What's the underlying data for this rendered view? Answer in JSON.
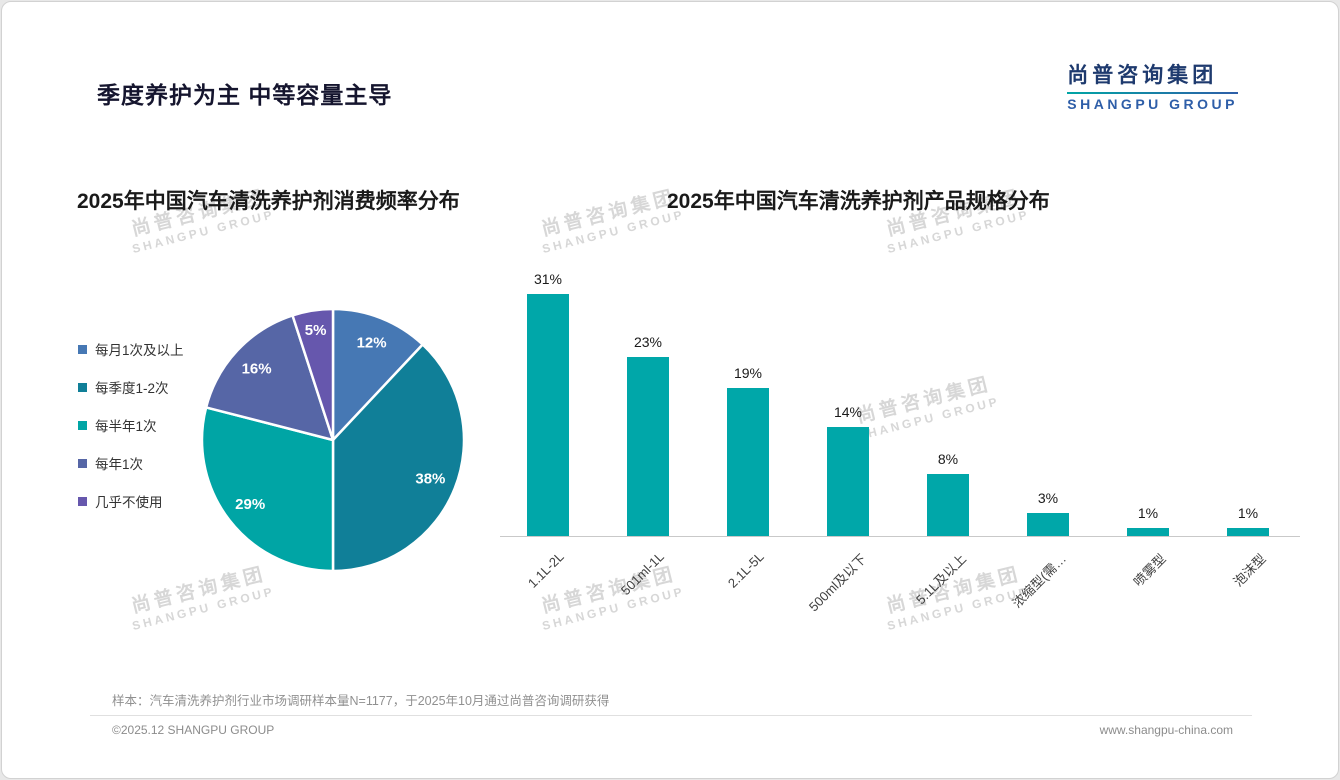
{
  "slide": {
    "title": "季度养护为主 中等容量主导",
    "logo": {
      "cn": "尚普咨询集团",
      "en": "SHANGPU GROUP"
    },
    "watermark": {
      "cn": "尚普咨询集团",
      "en": "SHANGPU GROUP"
    },
    "footer": {
      "note": "样本：汽车清洗养护剂行业市场调研样本量N=1177，于2025年10月通过尚普咨询调研获得",
      "copyright": "©2025.12 SHANGPU GROUP",
      "website": "www.shangpu-china.com"
    }
  },
  "chart_data": [
    {
      "type": "pie",
      "title": "2025年中国汽车清洗养护剂消费频率分布",
      "legend_position": "left",
      "start_angle_deg": -90,
      "direction": "clockwise",
      "slices": [
        {
          "label": "每月1次及以上",
          "value": 12,
          "color": "#4678b4"
        },
        {
          "label": "每季度1-2次",
          "value": 38,
          "color": "#107f98"
        },
        {
          "label": "每半年1次",
          "value": 29,
          "color": "#00a5a5"
        },
        {
          "label": "每年1次",
          "value": 16,
          "color": "#5666a6"
        },
        {
          "label": "几乎不使用",
          "value": 5,
          "color": "#6657ad"
        }
      ]
    },
    {
      "type": "bar",
      "title": "2025年中国汽车清洗养护剂产品规格分布",
      "categories": [
        "1.1L-2L",
        "501ml-1L",
        "2.1L-5L",
        "500ml及以下",
        "5.1L及以上",
        "浓缩型(需…",
        "喷雾型",
        "泡沫型"
      ],
      "values": [
        31,
        23,
        19,
        14,
        8,
        3,
        1,
        1
      ],
      "unit": "%",
      "bar_color": "#00a7a9",
      "ylim": [
        0,
        35
      ],
      "grid": false,
      "legend": "none"
    }
  ]
}
